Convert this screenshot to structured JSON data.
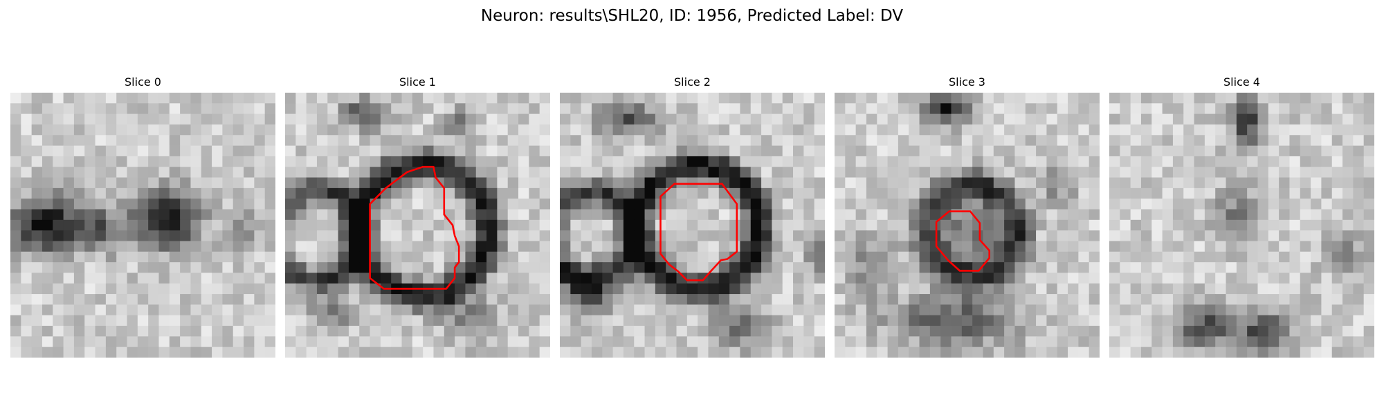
{
  "figure": {
    "title": "Neuron: results\\SHL20, ID: 1956, Predicted Label: DV",
    "contour_color": "#ff0000",
    "panels": [
      {
        "title": "Slice 0"
      },
      {
        "title": "Slice 1"
      },
      {
        "title": "Slice 2"
      },
      {
        "title": "Slice 3"
      },
      {
        "title": "Slice 4"
      }
    ]
  }
}
